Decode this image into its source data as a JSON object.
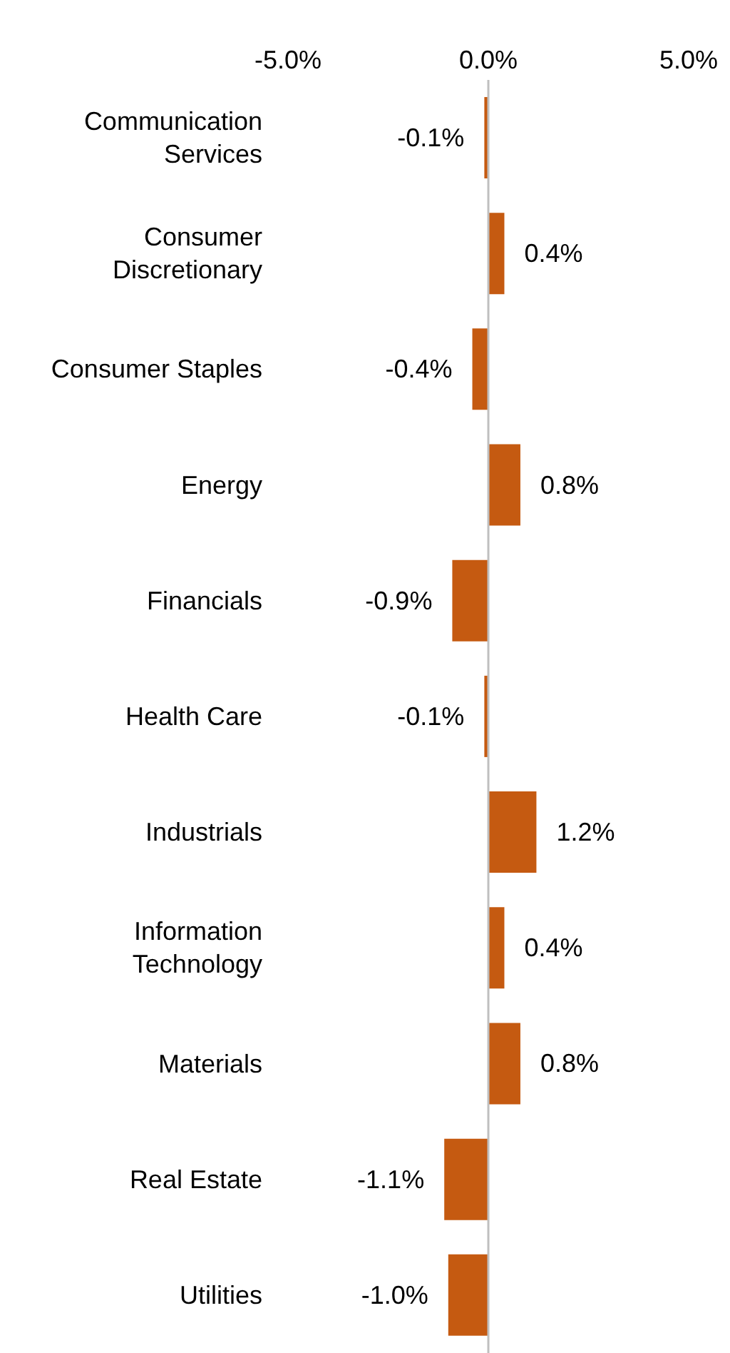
{
  "chart_data": {
    "type": "bar",
    "orientation": "horizontal",
    "categories": [
      "Communication Services",
      "Consumer Discretionary",
      "Consumer Staples",
      "Energy",
      "Financials",
      "Health Care",
      "Industrials",
      "Information Technology",
      "Materials",
      "Real Estate",
      "Utilities"
    ],
    "values": [
      -0.1,
      0.4,
      -0.4,
      0.8,
      -0.9,
      -0.1,
      1.2,
      0.4,
      0.8,
      -1.1,
      -1.0
    ],
    "value_labels": [
      "-0.1%",
      "0.4%",
      "-0.4%",
      "0.8%",
      "-0.9%",
      "-0.1%",
      "1.2%",
      "0.4%",
      "0.8%",
      "-1.1%",
      "-1.0%"
    ],
    "color": "#c55a11",
    "xlim": [
      -5,
      5
    ],
    "xticks": [
      {
        "value": -5,
        "label": "-5.0%"
      },
      {
        "value": 0,
        "label": "0.0%"
      },
      {
        "value": 5,
        "label": "5.0%"
      }
    ],
    "ref_lines": [
      {
        "axis": "x",
        "value": 0,
        "color": "#bfbfbf"
      }
    ],
    "grid": false,
    "legend": false
  }
}
